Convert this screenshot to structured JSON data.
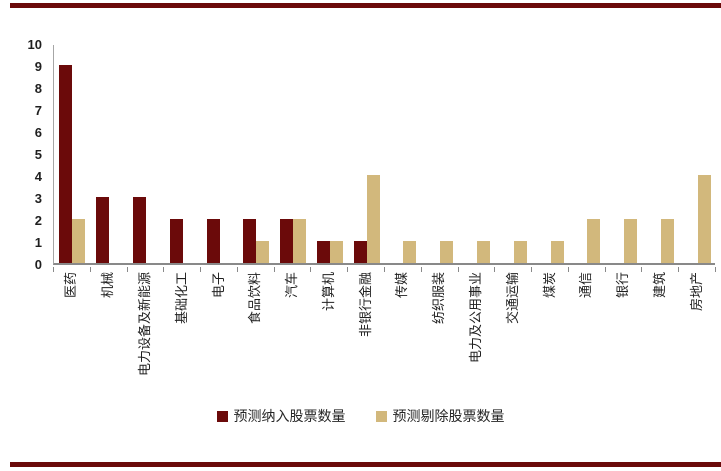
{
  "page": {
    "background": "#ffffff",
    "top_rule_color": "#6b0a0a",
    "bottom_rule_color": "#6b0a0a"
  },
  "chart_data": {
    "type": "bar",
    "title": "",
    "xlabel": "",
    "ylabel": "",
    "categories": [
      "医药",
      "机械",
      "电力设备及新能源",
      "基础化工",
      "电子",
      "食品饮料",
      "汽车",
      "计算机",
      "非银行金融",
      "传媒",
      "纺织服装",
      "电力及公用事业",
      "交通运输",
      "煤炭",
      "通信",
      "银行",
      "建筑",
      "房地产"
    ],
    "series": [
      {
        "name": "预测纳入股票数量",
        "color": "#6b0a0a",
        "values": [
          9,
          3,
          3,
          2,
          2,
          2,
          2,
          1,
          1,
          0,
          0,
          0,
          0,
          0,
          0,
          0,
          0,
          0
        ]
      },
      {
        "name": "预测剔除股票数量",
        "color": "#d2b87c",
        "values": [
          2,
          0,
          0,
          0,
          0,
          1,
          2,
          1,
          4,
          1,
          1,
          1,
          1,
          1,
          2,
          2,
          2,
          4
        ]
      }
    ],
    "ylim": [
      0,
      10
    ],
    "yticks": [
      0,
      1,
      2,
      3,
      4,
      5,
      6,
      7,
      8,
      9,
      10
    ],
    "grid": false,
    "legend_position": "bottom",
    "bar_orientation": "vertical",
    "x_label_rotation_deg": 90,
    "axis_color": "#a6a6a6",
    "tick_color": "#898989",
    "label_color": "#1f1f1f"
  }
}
